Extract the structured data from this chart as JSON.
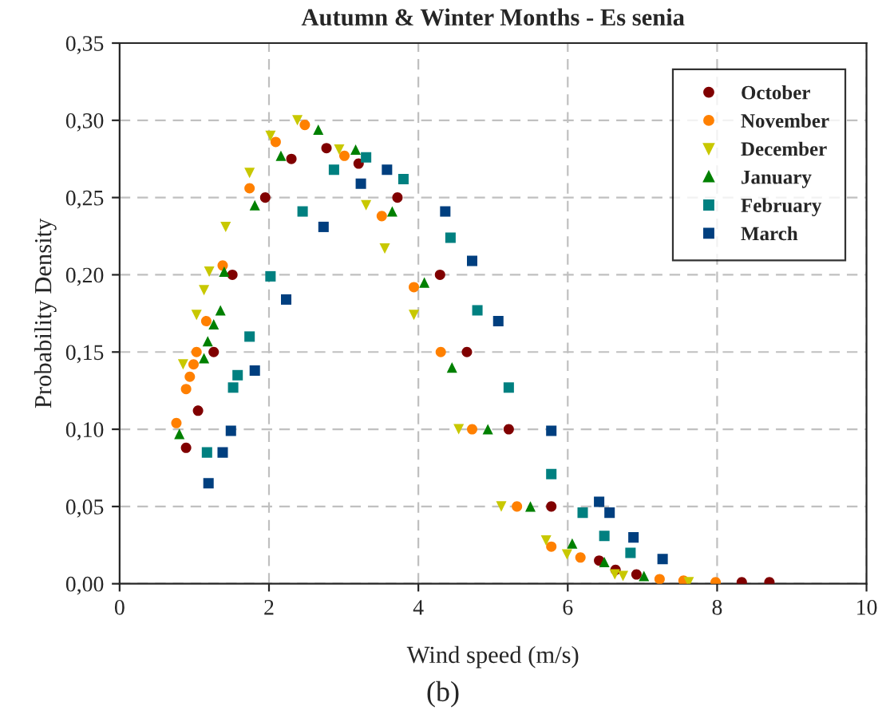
{
  "chart_data": {
    "type": "scatter",
    "title": "Autumn & Winter Months - Es senia",
    "xlabel": "Wind speed (m/s)",
    "ylabel": "Probability Density",
    "annotations": [
      "(b)"
    ],
    "xlim": [
      0,
      10
    ],
    "xticks": [
      0,
      2,
      4,
      6,
      8,
      10
    ],
    "ylim": [
      0,
      0.35
    ],
    "yticks": [
      {
        "value": 0,
        "label": "0,00"
      },
      {
        "value": 0.05,
        "label": "0,05"
      },
      {
        "value": 0.1,
        "label": "0,10"
      },
      {
        "value": 0.15,
        "label": "0,15"
      },
      {
        "value": 0.2,
        "label": "0,20"
      },
      {
        "value": 0.25,
        "label": "0,25"
      },
      {
        "value": 0.3,
        "label": "0,30"
      },
      {
        "value": 0.35,
        "label": "0,35"
      }
    ],
    "grid": true,
    "legend": "top right",
    "series": [
      {
        "name": "October",
        "color": "#800000",
        "marker": "circle",
        "x": [
          0.89,
          1.05,
          1.26,
          1.51,
          1.95,
          2.3,
          2.77,
          3.2,
          3.72,
          4.29,
          4.65,
          5.21,
          5.78,
          6.42,
          6.64,
          6.92,
          8.33,
          8.7
        ],
        "values": [
          0.088,
          0.112,
          0.15,
          0.2,
          0.25,
          0.275,
          0.282,
          0.272,
          0.25,
          0.2,
          0.15,
          0.1,
          0.05,
          0.015,
          0.009,
          0.006,
          0.001,
          0.001
        ]
      },
      {
        "name": "November",
        "color": "#ff8000",
        "marker": "circle",
        "x": [
          0.76,
          0.89,
          0.94,
          0.99,
          1.03,
          1.16,
          1.38,
          1.74,
          2.09,
          2.48,
          3.01,
          3.51,
          3.94,
          4.3,
          4.72,
          5.32,
          5.78,
          6.17,
          7.23,
          7.55,
          7.98
        ],
        "values": [
          0.104,
          0.126,
          0.134,
          0.142,
          0.15,
          0.17,
          0.206,
          0.256,
          0.286,
          0.297,
          0.277,
          0.238,
          0.192,
          0.15,
          0.1,
          0.05,
          0.024,
          0.017,
          0.003,
          0.002,
          0.001
        ]
      },
      {
        "name": "December",
        "color": "#c8c800",
        "marker": "triangle_down",
        "x": [
          0.85,
          1.03,
          1.13,
          1.2,
          1.42,
          1.74,
          2.02,
          2.38,
          2.94,
          3.3,
          3.55,
          3.94,
          4.54,
          5.11,
          5.71,
          5.99,
          6.63,
          6.74,
          7.62
        ],
        "values": [
          0.142,
          0.174,
          0.19,
          0.202,
          0.231,
          0.266,
          0.29,
          0.3,
          0.281,
          0.245,
          0.217,
          0.174,
          0.1,
          0.05,
          0.028,
          0.019,
          0.006,
          0.005,
          0.001
        ]
      },
      {
        "name": "January",
        "color": "#008000",
        "marker": "triangle",
        "x": [
          0.8,
          1.13,
          1.18,
          1.26,
          1.35,
          1.4,
          1.81,
          2.16,
          2.66,
          3.16,
          3.65,
          4.08,
          4.45,
          4.93,
          5.5,
          6.06,
          6.49,
          7.02
        ],
        "values": [
          0.097,
          0.146,
          0.157,
          0.168,
          0.177,
          0.202,
          0.245,
          0.277,
          0.294,
          0.281,
          0.241,
          0.195,
          0.14,
          0.1,
          0.05,
          0.026,
          0.014,
          0.005
        ]
      },
      {
        "name": "February",
        "color": "#008080",
        "marker": "square",
        "x": [
          1.17,
          1.52,
          1.58,
          1.74,
          2.02,
          2.45,
          2.87,
          3.3,
          3.8,
          4.43,
          4.79,
          5.21,
          5.78,
          6.2,
          6.49,
          6.84
        ],
        "values": [
          0.085,
          0.127,
          0.135,
          0.16,
          0.199,
          0.241,
          0.268,
          0.276,
          0.262,
          0.224,
          0.177,
          0.127,
          0.071,
          0.046,
          0.031,
          0.02
        ]
      },
      {
        "name": "March",
        "color": "#003f7f",
        "marker": "square",
        "x": [
          1.19,
          1.38,
          1.49,
          1.81,
          2.23,
          2.73,
          3.23,
          3.58,
          4.36,
          4.72,
          5.07,
          5.78,
          6.42,
          6.56,
          6.88,
          7.27
        ],
        "values": [
          0.065,
          0.085,
          0.099,
          0.138,
          0.184,
          0.231,
          0.259,
          0.268,
          0.241,
          0.209,
          0.17,
          0.099,
          0.053,
          0.046,
          0.03,
          0.016
        ]
      }
    ]
  }
}
